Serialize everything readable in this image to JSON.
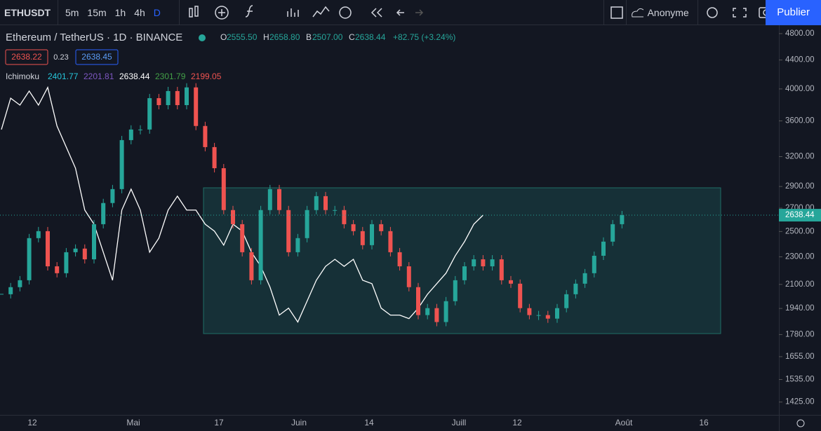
{
  "toolbar": {
    "symbol": "ETHUSDT",
    "intervals": [
      "5m",
      "15m",
      "1h",
      "4h",
      "D"
    ],
    "user": "Anonyme",
    "publish": "Publier"
  },
  "legend": {
    "title": "Ethereum / TetherUS · 1D · BINANCE",
    "ohlc": [
      {
        "label": "O",
        "value": "2555.50"
      },
      {
        "label": "H",
        "value": "2658.80"
      },
      {
        "label": "B",
        "value": "2507.00"
      },
      {
        "label": "C",
        "value": "2638.44"
      }
    ],
    "change": "+82.75 (+3.24%)",
    "bid": "2638.22",
    "spread": "0.23",
    "ask": "2638.45",
    "indicator": "Ichimoku",
    "indicator_values": [
      "2401.77",
      "2201.81",
      "2638.44",
      "2301.79",
      "2199.05"
    ]
  },
  "chart_data": {
    "type": "candlestick",
    "log_scale": true,
    "up_color": "#26a69a",
    "down_color": "#ef5350",
    "lagging_color": "#ffffff",
    "close": [
      2033,
      2081,
      2129,
      2446,
      2503,
      2229,
      2179,
      2335,
      2363,
      2281,
      2561,
      2746,
      2875,
      3379,
      3499,
      3499,
      3880,
      3792,
      3972,
      3792,
      4020,
      3540,
      3302,
      3080,
      2683,
      2561,
      2335,
      2129,
      2683,
      2875,
      2683,
      2335,
      2446,
      2683,
      2809,
      2683,
      2683,
      2561,
      2503,
      2390,
      2561,
      2503,
      2335,
      2229,
      2081,
      1898,
      1942,
      1855,
      1987,
      2129,
      2229,
      2281,
      2229,
      2281,
      2129,
      2105,
      1942,
      1898,
      1898,
      1876,
      1942,
      2033,
      2105,
      2179,
      2308,
      2418,
      2561,
      2638.44
    ],
    "ylim": [
      1366,
      4923
    ],
    "yticks": [
      {
        "value": 4800,
        "label": "4800.00"
      },
      {
        "value": 4400,
        "label": "4400.00"
      },
      {
        "value": 4000,
        "label": "4000.00"
      },
      {
        "value": 3600,
        "label": "3600.00"
      },
      {
        "value": 3200,
        "label": "3200.00"
      },
      {
        "value": 2900,
        "label": "2900.00"
      },
      {
        "value": 2700,
        "label": "2700.00"
      },
      {
        "value": 2500,
        "label": "2500.00"
      },
      {
        "value": 2300,
        "label": "2300.00"
      },
      {
        "value": 2100,
        "label": "2100.00"
      },
      {
        "value": 1940,
        "label": "1940.00"
      },
      {
        "value": 1780,
        "label": "1780.00"
      },
      {
        "value": 1655,
        "label": "1655.00"
      },
      {
        "value": 1535,
        "label": "1535.00"
      },
      {
        "value": 1425,
        "label": "1425.00"
      }
    ],
    "last_price": {
      "value": 2638.44,
      "label": "2638.44"
    },
    "time_labels": [
      "12",
      "Mai",
      "17",
      "Juin",
      "14",
      "Juill",
      "12",
      "Août",
      "16"
    ]
  }
}
